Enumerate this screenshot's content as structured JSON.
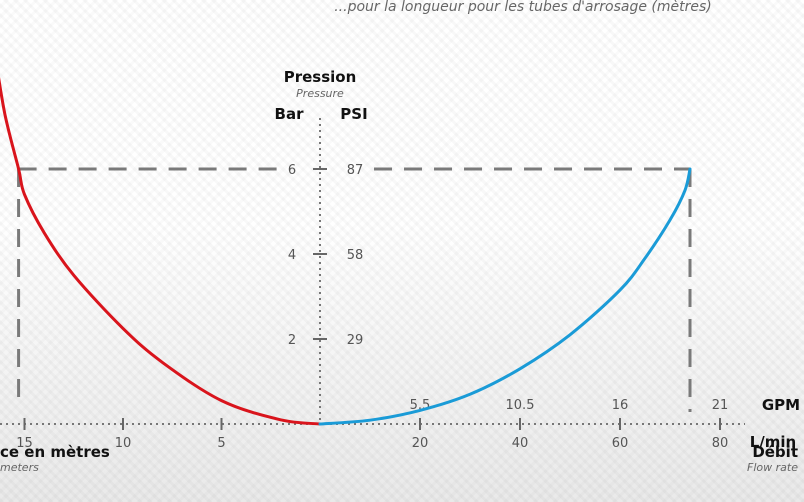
{
  "header_text": "...pour la longueur pour les tubes d'arrosage (mètres)",
  "chart_data": {
    "type": "line",
    "pressure_axis": {
      "title": "Pression",
      "subtitle": "Pressure",
      "bar_label": "Bar",
      "psi_label": "PSI",
      "ticks": [
        {
          "bar": "2",
          "psi": "29",
          "value": 2
        },
        {
          "bar": "4",
          "psi": "58",
          "value": 4
        },
        {
          "bar": "6",
          "psi": "87",
          "value": 6
        }
      ]
    },
    "distance_axis": {
      "title": "ce en mètres",
      "subtitle": "meters",
      "ticks": [
        {
          "label": "15",
          "value": 15
        },
        {
          "label": "10",
          "value": 10
        },
        {
          "label": "5",
          "value": 5
        }
      ]
    },
    "flow_axis": {
      "title": "Débit",
      "subtitle": "Flow rate",
      "gpm_unit": "GPM",
      "lmin_unit": "L/min",
      "lmin_ticks": [
        {
          "label": "20",
          "value": 20
        },
        {
          "label": "40",
          "value": 40
        },
        {
          "label": "60",
          "value": 60
        },
        {
          "label": "80",
          "value": 80
        }
      ],
      "gpm_ticks": [
        {
          "label": "5.5",
          "value": 20
        },
        {
          "label": "10.5",
          "value": 40
        },
        {
          "label": "16",
          "value": 60
        },
        {
          "label": "21",
          "value": 80
        }
      ]
    },
    "series": [
      {
        "color": "#d9141c",
        "points": [
          [
            0,
            0
          ],
          [
            2,
            0.1
          ],
          [
            5,
            0.55
          ],
          [
            8,
            1.45
          ],
          [
            10,
            2.25
          ],
          [
            12.5,
            3.5
          ],
          [
            14,
            4.5
          ],
          [
            15,
            5.4
          ],
          [
            15.3,
            6
          ],
          [
            16,
            7.3
          ],
          [
            16.5,
            8.7
          ]
        ]
      },
      {
        "color": "#1a9bd7",
        "points": [
          [
            0,
            0
          ],
          [
            10,
            0.09
          ],
          [
            20,
            0.32
          ],
          [
            30,
            0.7
          ],
          [
            40,
            1.3
          ],
          [
            50,
            2.1
          ],
          [
            60,
            3.15
          ],
          [
            65,
            3.9
          ],
          [
            70,
            4.8
          ],
          [
            73,
            5.5
          ],
          [
            74,
            6
          ]
        ]
      }
    ],
    "reference": {
      "pressure_bar": 6,
      "distance_m": 15.3,
      "flow_lmin": 74
    }
  }
}
